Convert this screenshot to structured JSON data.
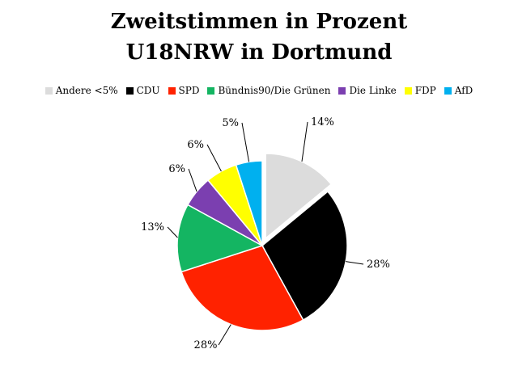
{
  "chart_data": {
    "type": "pie",
    "title": "Zweitstimmen in Prozent U18NRW in Dortmund",
    "legend_position": "top",
    "slices": [
      {
        "name": "Andere <5%",
        "value": 14,
        "label": "14%",
        "color": "#dcdcdc",
        "exploded": true
      },
      {
        "name": "CDU",
        "value": 28,
        "label": "28%",
        "color": "#000000",
        "exploded": false
      },
      {
        "name": "SPD",
        "value": 28,
        "label": "28%",
        "color": "#ff2200",
        "exploded": false
      },
      {
        "name": "Bündnis90/Die Grünen",
        "value": 13,
        "label": "13%",
        "color": "#14b562",
        "exploded": false
      },
      {
        "name": "Die Linke",
        "value": 6,
        "label": "6%",
        "color": "#7b3fb0",
        "exploded": false
      },
      {
        "name": "FDP",
        "value": 6,
        "label": "6%",
        "color": "#ffff00",
        "exploded": false
      },
      {
        "name": "AfD",
        "value": 5,
        "label": "5%",
        "color": "#00b0ef",
        "exploded": false
      }
    ]
  }
}
